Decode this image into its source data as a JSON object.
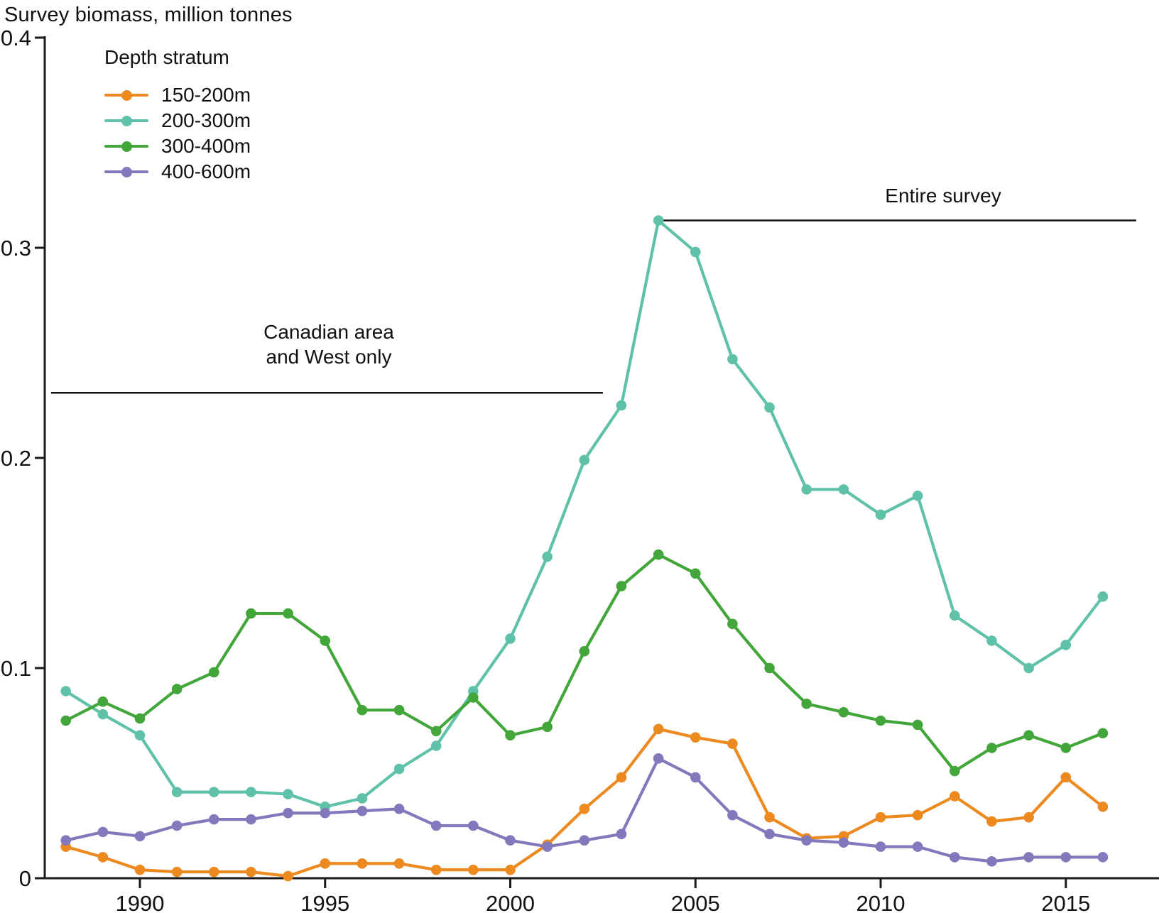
{
  "title": "Survey biomass, million tonnes",
  "legend": {
    "title": "Depth stratum",
    "items": [
      {
        "label": "150-200m"
      },
      {
        "label": "200-300m"
      },
      {
        "label": "300-400m"
      },
      {
        "label": "400-600m"
      }
    ]
  },
  "annotations": [
    {
      "line1": "Canadian area",
      "line2": "and West only",
      "year_start": 1987.6,
      "year_end": 2002.5,
      "value": 0.231
    },
    {
      "line1": "Entire survey",
      "line2": "",
      "year_start": 2004.0,
      "year_end": 2016.9,
      "value": 0.313
    }
  ],
  "chart_data": {
    "type": "line",
    "title": "Survey biomass, million tonnes",
    "xlabel": "",
    "ylabel": "Survey biomass, million tonnes",
    "x": [
      1988,
      1989,
      1990,
      1991,
      1992,
      1993,
      1994,
      1995,
      1996,
      1997,
      1998,
      1999,
      2000,
      2001,
      2002,
      2003,
      2004,
      2005,
      2006,
      2007,
      2008,
      2009,
      2010,
      2011,
      2012,
      2013,
      2014,
      2015,
      2016
    ],
    "series": [
      {
        "name": "150-200m",
        "color": "#EC8A20",
        "values": [
          0.015,
          0.01,
          0.004,
          0.003,
          0.003,
          0.003,
          0.001,
          0.007,
          0.007,
          0.007,
          0.004,
          0.004,
          0.004,
          0.016,
          0.033,
          0.048,
          0.071,
          0.067,
          0.064,
          0.029,
          0.019,
          0.02,
          0.029,
          0.03,
          0.039,
          0.027,
          0.029,
          0.048,
          0.034
        ]
      },
      {
        "name": "200-300m",
        "color": "#5FC2A8",
        "values": [
          0.089,
          0.078,
          0.068,
          0.041,
          0.041,
          0.041,
          0.04,
          0.034,
          0.038,
          0.052,
          0.063,
          0.089,
          0.114,
          0.153,
          0.199,
          0.225,
          0.313,
          0.298,
          0.247,
          0.224,
          0.185,
          0.185,
          0.173,
          0.182,
          0.125,
          0.113,
          0.1,
          0.111,
          0.134
        ]
      },
      {
        "name": "300-400m",
        "color": "#43A63A",
        "values": [
          0.075,
          0.084,
          0.076,
          0.09,
          0.098,
          0.126,
          0.126,
          0.113,
          0.08,
          0.08,
          0.07,
          0.086,
          0.068,
          0.072,
          0.108,
          0.139,
          0.154,
          0.145,
          0.121,
          0.1,
          0.083,
          0.079,
          0.075,
          0.073,
          0.051,
          0.062,
          0.068,
          0.062,
          0.069
        ]
      },
      {
        "name": "400-600m",
        "color": "#8179BB",
        "values": [
          0.018,
          0.022,
          0.02,
          0.025,
          0.028,
          0.028,
          0.031,
          0.031,
          0.032,
          0.033,
          0.025,
          0.025,
          0.018,
          0.015,
          0.018,
          0.021,
          0.057,
          0.048,
          0.03,
          0.021,
          0.018,
          0.017,
          0.015,
          0.015,
          0.01,
          0.008,
          0.01,
          0.01,
          0.01
        ]
      }
    ],
    "xticks": [
      1990,
      1995,
      2000,
      2005,
      2010,
      2015
    ],
    "xtick_labels": [
      "1990",
      "1995",
      "2000",
      "2005",
      "2010",
      "2015"
    ],
    "yticks": [
      0,
      0.1,
      0.2,
      0.3,
      0.4
    ],
    "ytick_labels": [
      "0",
      "0.1",
      "0.2",
      "0.3",
      "0.4"
    ],
    "xlim": [
      1987.4,
      2017.2
    ],
    "ylim": [
      0,
      0.4
    ],
    "grid": false,
    "legend_position": "top-left",
    "annotations": [
      {
        "text": "Canadian area and West only",
        "span_years": [
          1987.6,
          2002.5
        ],
        "at_value": 0.231
      },
      {
        "text": "Entire survey",
        "span_years": [
          2004.0,
          2016.9
        ],
        "at_value": 0.313
      }
    ]
  }
}
